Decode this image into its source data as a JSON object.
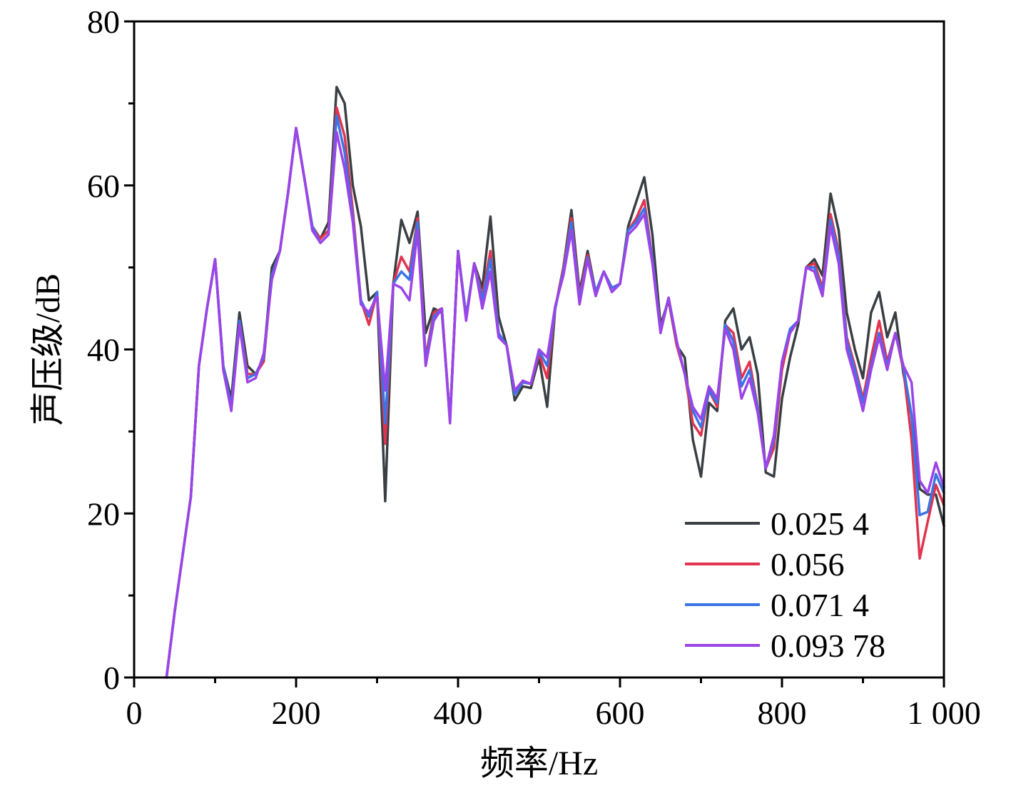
{
  "chart_data": {
    "type": "line",
    "xlabel": "频率/Hz",
    "ylabel": "声压级/dB",
    "xlim": [
      0,
      1000
    ],
    "ylim": [
      0,
      80
    ],
    "x_ticks": [
      0,
      200,
      400,
      600,
      800,
      1000
    ],
    "x_tick_labels": [
      "0",
      "200",
      "400",
      "600",
      "800",
      "1 000"
    ],
    "y_ticks": [
      0,
      20,
      40,
      60,
      80
    ],
    "y_tick_labels": [
      "0",
      "20",
      "40",
      "60",
      "80"
    ],
    "grid": false,
    "legend": "bottom-right",
    "x": [
      40,
      50,
      60,
      70,
      80,
      90,
      100,
      110,
      120,
      130,
      140,
      150,
      160,
      170,
      180,
      190,
      200,
      210,
      220,
      230,
      240,
      250,
      260,
      270,
      280,
      290,
      300,
      310,
      320,
      330,
      340,
      350,
      360,
      370,
      380,
      390,
      400,
      410,
      420,
      430,
      440,
      450,
      460,
      470,
      480,
      490,
      500,
      510,
      520,
      530,
      540,
      550,
      560,
      570,
      580,
      590,
      600,
      610,
      620,
      630,
      640,
      650,
      660,
      670,
      680,
      690,
      700,
      710,
      720,
      730,
      740,
      750,
      760,
      770,
      780,
      790,
      800,
      810,
      820,
      830,
      840,
      850,
      860,
      870,
      880,
      890,
      900,
      910,
      920,
      930,
      940,
      950,
      960,
      970,
      980,
      990,
      1000
    ],
    "series": [
      {
        "name": "0.025 4",
        "color": "#3a3f44",
        "values": [
          0,
          8,
          15,
          22,
          38,
          45,
          51,
          38,
          34,
          44.5,
          38,
          37,
          39,
          50,
          52,
          59,
          67,
          61,
          55,
          53.5,
          55.5,
          72,
          70,
          60,
          55,
          46,
          47,
          21.5,
          48,
          55.8,
          53,
          56.8,
          42,
          45,
          44.5,
          31.5,
          52,
          44,
          50.5,
          47.5,
          56.2,
          44,
          40.5,
          33.8,
          35.5,
          35.3,
          39,
          33,
          45,
          50,
          57,
          47,
          52,
          47,
          49.5,
          47.5,
          48,
          55,
          58,
          61,
          54,
          43,
          46,
          40.5,
          39,
          29,
          24.5,
          33.5,
          32.5,
          43.5,
          45,
          40,
          41.5,
          37,
          25,
          24.5,
          34,
          39,
          43,
          50,
          51,
          49,
          59,
          54.5,
          44.5,
          40,
          36.5,
          44.5,
          47,
          41.5,
          44.5,
          37,
          32,
          23,
          22.3,
          22.3,
          18.5
        ]
      },
      {
        "name": "0.056",
        "color": "#e0344f",
        "values": [
          0,
          8,
          15,
          22,
          38,
          45,
          51,
          38,
          33,
          43.5,
          37,
          37,
          38.5,
          49,
          52,
          59,
          67,
          61,
          55,
          53.5,
          54.5,
          69.5,
          66,
          57,
          46,
          43,
          47,
          28.5,
          48,
          51.3,
          49.5,
          56,
          39,
          44.5,
          45,
          31.5,
          52,
          44,
          50.5,
          46.5,
          52,
          42,
          40.5,
          34.5,
          36,
          35.8,
          39.5,
          36.5,
          45,
          50,
          56,
          46.5,
          51.5,
          47,
          49.5,
          47.5,
          48,
          54.5,
          56,
          58.2,
          51,
          42.5,
          46.3,
          40.5,
          37,
          31,
          29.5,
          35,
          33,
          43,
          42,
          36.5,
          38.5,
          33,
          25.5,
          28,
          37.5,
          42,
          43.5,
          50,
          50.5,
          47.5,
          56.5,
          52,
          41.5,
          38,
          34,
          39,
          43.5,
          38.5,
          42,
          37.5,
          29,
          14.5,
          19,
          23.5,
          21
        ]
      },
      {
        "name": "0.071 4",
        "color": "#3b74e6",
        "values": [
          0,
          8,
          15,
          22,
          38,
          45,
          51,
          38,
          33,
          43.5,
          36.5,
          37,
          39,
          49,
          52,
          59,
          67,
          61,
          55,
          53,
          54,
          68.5,
          64,
          56,
          46,
          44,
          47,
          31,
          48,
          49.5,
          48.5,
          55.5,
          38.5,
          44,
          45,
          31.3,
          52,
          44,
          50.5,
          46,
          51,
          42,
          40.5,
          34.5,
          36,
          35.8,
          39.8,
          38,
          45,
          49.5,
          55.5,
          46,
          51.2,
          47,
          49.5,
          47.5,
          48,
          54.5,
          55.5,
          57.2,
          51,
          42.3,
          46.3,
          41,
          37,
          32.5,
          30.5,
          35,
          33.5,
          43,
          41,
          35.5,
          37.5,
          32.8,
          25.5,
          29,
          38.5,
          42.5,
          43.5,
          50,
          50,
          47,
          55.8,
          51.5,
          41,
          37.5,
          33.5,
          38,
          42,
          38,
          42,
          37.8,
          32,
          19.8,
          20.2,
          24.8,
          22.5
        ]
      },
      {
        "name": "0.093 78",
        "color": "#9b44e8",
        "values": [
          0,
          8,
          15,
          22,
          38,
          45,
          51,
          37.5,
          32.5,
          43,
          36,
          36.5,
          39.5,
          48.5,
          52,
          59,
          67,
          61,
          54.5,
          53,
          54,
          66.5,
          62,
          55.5,
          45.5,
          44.5,
          46.5,
          35,
          48,
          47.5,
          46,
          54.5,
          38,
          43.5,
          45,
          31,
          52,
          43.5,
          50.5,
          45,
          49.5,
          41.5,
          40.5,
          35,
          36.2,
          35.8,
          40,
          39,
          45.3,
          49,
          54.5,
          45.5,
          51,
          46.5,
          49.5,
          47,
          48,
          54,
          55,
          56.5,
          50.5,
          42,
          46.3,
          41,
          37,
          33,
          31.5,
          35.5,
          34,
          42.5,
          40,
          34,
          36.5,
          32.3,
          25.5,
          29.5,
          38.5,
          42,
          43.5,
          50,
          49.5,
          46.5,
          55,
          50.5,
          40,
          36.5,
          32.5,
          37.5,
          41.5,
          37.5,
          42,
          38,
          36,
          24,
          22.5,
          26.2,
          23.2
        ]
      }
    ]
  }
}
